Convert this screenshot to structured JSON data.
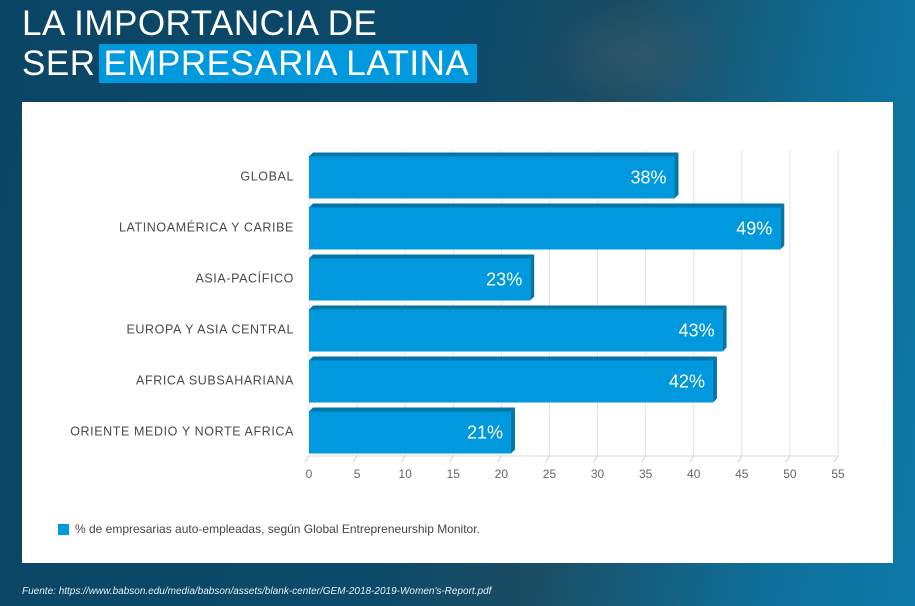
{
  "header": {
    "title_line1": "LA IMPORTANCIA DE",
    "title_line2_plain": "SER",
    "title_line2_highlight": "EMPRESARIA LATINA"
  },
  "colors": {
    "bar": "#0099dd",
    "bar_dark": "#0075aa",
    "background": "#0b4a6a"
  },
  "chart_data": {
    "type": "bar",
    "orientation": "horizontal",
    "categories": [
      "GLOBAL",
      "LATINOAMÉRICA Y CARIBE",
      "ASIA-PACÍFICO",
      "EUROPA Y ASIA CENTRAL",
      "AFRICA SUBSAHARIANA",
      "ORIENTE MEDIO Y NORTE AFRICA"
    ],
    "values": [
      38,
      49,
      23,
      43,
      42,
      21
    ],
    "value_labels": [
      "38%",
      "49%",
      "23%",
      "43%",
      "42%",
      "21%"
    ],
    "xlim": [
      0,
      55
    ],
    "xticks": [
      "0",
      "5",
      "10",
      "15",
      "20",
      "25",
      "30",
      "35",
      "40",
      "45",
      "50",
      "55"
    ],
    "grid": true,
    "legend": {
      "position": "bottom-left",
      "entries": [
        "% de empresarias auto-empleadas, según Global Entrepreneurship Monitor."
      ]
    },
    "title": "",
    "xlabel": "",
    "ylabel": ""
  },
  "footer": {
    "source": "Fuente: https://www.babson.edu/media/babson/assets/blank-center/GEM-2018-2019-Women's-Report.pdf"
  }
}
